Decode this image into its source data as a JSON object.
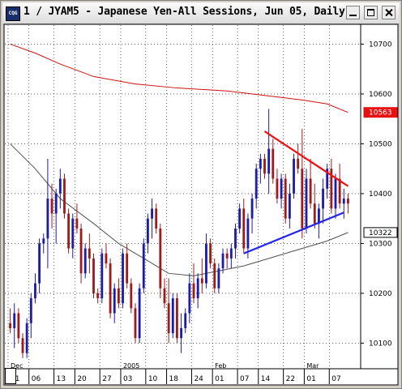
{
  "window": {
    "title": "1 / JYAM5 - Japanese Yen-All Sessions, Jun 05, Daily"
  },
  "colors": {
    "up": "#1c1ca8",
    "down": "#9c1c1c",
    "ma_long": "#d01010",
    "ma_short": "#505050",
    "resistance": "#ee1111",
    "support": "#2222ee"
  },
  "chart_data": {
    "type": "candlestick",
    "title": "1 / JYAM5 - Japanese Yen-All Sessions, Jun 05, Daily",
    "y_ticks": [
      10100,
      10200,
      10300,
      10400,
      10500,
      10600,
      10700
    ],
    "y_tick_labels": [
      "10100",
      "10200",
      "10300",
      "10400",
      "10500",
      "10600",
      "10700"
    ],
    "ylim": [
      10060,
      10730
    ],
    "x_ticks": [
      "01",
      "06",
      "13",
      "20",
      "27",
      "03",
      "10",
      "18",
      "24",
      "01",
      "07",
      "14",
      "22",
      "01",
      "07"
    ],
    "month_labels": [
      {
        "label": "Dec",
        "index": 0
      },
      {
        "label": "2005",
        "index": 5
      },
      {
        "label": "Feb",
        "index": 9
      },
      {
        "label": "Mar",
        "index": 13
      }
    ],
    "price_tags": [
      {
        "label": "10563",
        "value": 10563,
        "style": "red"
      },
      {
        "label": "10322",
        "value": 10322,
        "style": "dark"
      }
    ],
    "candles": [
      [
        10140,
        10170,
        10120,
        10130
      ],
      [
        10130,
        10180,
        10090,
        10160
      ],
      [
        10160,
        10170,
        10100,
        10110
      ],
      [
        10110,
        10120,
        10070,
        10080
      ],
      [
        10080,
        10150,
        10070,
        10140
      ],
      [
        10140,
        10200,
        10110,
        10190
      ],
      [
        10190,
        10240,
        10180,
        10220
      ],
      [
        10220,
        10310,
        10200,
        10300
      ],
      [
        10300,
        10320,
        10280,
        10310
      ],
      [
        10310,
        10470,
        10250,
        10390
      ],
      [
        10390,
        10420,
        10330,
        10360
      ],
      [
        10360,
        10410,
        10300,
        10400
      ],
      [
        10400,
        10450,
        10370,
        10430
      ],
      [
        10430,
        10440,
        10350,
        10360
      ],
      [
        10360,
        10370,
        10280,
        10290
      ],
      [
        10290,
        10360,
        10270,
        10350
      ],
      [
        10350,
        10380,
        10320,
        10330
      ],
      [
        10330,
        10340,
        10220,
        10240
      ],
      [
        10240,
        10300,
        10230,
        10290
      ],
      [
        10290,
        10320,
        10240,
        10270
      ],
      [
        10270,
        10280,
        10190,
        10200
      ],
      [
        10200,
        10210,
        10180,
        10190
      ],
      [
        10190,
        10290,
        10180,
        10280
      ],
      [
        10280,
        10300,
        10250,
        10260
      ],
      [
        10260,
        10270,
        10150,
        10160
      ],
      [
        10160,
        10220,
        10140,
        10210
      ],
      [
        10210,
        10230,
        10170,
        10180
      ],
      [
        10180,
        10290,
        10170,
        10280
      ],
      [
        10280,
        10300,
        10210,
        10220
      ],
      [
        10220,
        10230,
        10160,
        10170
      ],
      [
        10170,
        10180,
        10100,
        10110
      ],
      [
        10110,
        10220,
        10100,
        10210
      ],
      [
        10210,
        10310,
        10200,
        10300
      ],
      [
        10300,
        10360,
        10280,
        10350
      ],
      [
        10350,
        10390,
        10310,
        10370
      ],
      [
        10370,
        10380,
        10320,
        10330
      ],
      [
        10330,
        10340,
        10190,
        10210
      ],
      [
        10210,
        10230,
        10170,
        10180
      ],
      [
        10180,
        10230,
        10100,
        10120
      ],
      [
        10120,
        10200,
        10110,
        10190
      ],
      [
        10190,
        10200,
        10100,
        10110
      ],
      [
        10110,
        10160,
        10080,
        10130
      ],
      [
        10130,
        10170,
        10120,
        10160
      ],
      [
        10160,
        10240,
        10140,
        10220
      ],
      [
        10220,
        10260,
        10180,
        10190
      ],
      [
        10190,
        10240,
        10170,
        10230
      ],
      [
        10230,
        10270,
        10200,
        10220
      ],
      [
        10220,
        10320,
        10210,
        10300
      ],
      [
        10300,
        10310,
        10250,
        10260
      ],
      [
        10260,
        10270,
        10200,
        10210
      ],
      [
        10210,
        10260,
        10200,
        10250
      ],
      [
        10250,
        10290,
        10240,
        10280
      ],
      [
        10280,
        10290,
        10250,
        10270
      ],
      [
        10270,
        10300,
        10250,
        10290
      ],
      [
        10290,
        10340,
        10270,
        10330
      ],
      [
        10330,
        10380,
        10320,
        10370
      ],
      [
        10370,
        10390,
        10280,
        10290
      ],
      [
        10290,
        10360,
        10270,
        10350
      ],
      [
        10350,
        10400,
        10320,
        10390
      ],
      [
        10390,
        10460,
        10370,
        10450
      ],
      [
        10450,
        10480,
        10420,
        10470
      ],
      [
        10470,
        10480,
        10430,
        10440
      ],
      [
        10440,
        10570,
        10400,
        10490
      ],
      [
        10490,
        10510,
        10420,
        10430
      ],
      [
        10430,
        10450,
        10380,
        10390
      ],
      [
        10390,
        10440,
        10370,
        10430
      ],
      [
        10430,
        10440,
        10340,
        10350
      ],
      [
        10350,
        10420,
        10330,
        10400
      ],
      [
        10400,
        10480,
        10390,
        10470
      ],
      [
        10470,
        10500,
        10440,
        10450
      ],
      [
        10450,
        10530,
        10310,
        10330
      ],
      [
        10330,
        10450,
        10320,
        10430
      ],
      [
        10430,
        10470,
        10370,
        10380
      ],
      [
        10380,
        10420,
        10330,
        10340
      ],
      [
        10340,
        10380,
        10310,
        10370
      ],
      [
        10370,
        10430,
        10340,
        10410
      ],
      [
        10410,
        10460,
        10390,
        10450
      ],
      [
        10450,
        10470,
        10360,
        10370
      ],
      [
        10370,
        10440,
        10350,
        10430
      ],
      [
        10430,
        10460,
        10370,
        10380
      ],
      [
        10380,
        10410,
        10350,
        10390
      ],
      [
        10390,
        10400,
        10360,
        10380
      ]
    ],
    "indicators": [
      {
        "name": "",
        "type": "moving-average",
        "color": "#d01010",
        "points": [
          [
            0,
            10700
          ],
          [
            6,
            10682
          ],
          [
            12,
            10660
          ],
          [
            20,
            10635
          ],
          [
            30,
            10620
          ],
          [
            40,
            10612
          ],
          [
            52,
            10606
          ],
          [
            60,
            10598
          ],
          [
            70,
            10588
          ],
          [
            76,
            10580
          ],
          [
            81,
            10563
          ]
        ]
      },
      {
        "name": "",
        "type": "moving-average",
        "color": "#505050",
        "points": [
          [
            0,
            10500
          ],
          [
            6,
            10450
          ],
          [
            12,
            10390
          ],
          [
            20,
            10340
          ],
          [
            26,
            10300
          ],
          [
            32,
            10270
          ],
          [
            38,
            10240
          ],
          [
            44,
            10235
          ],
          [
            50,
            10245
          ],
          [
            56,
            10255
          ],
          [
            62,
            10270
          ],
          [
            68,
            10285
          ],
          [
            72,
            10295
          ],
          [
            76,
            10305
          ],
          [
            81,
            10322
          ]
        ]
      }
    ],
    "trendlines": [
      {
        "name": "",
        "color": "#ee1111",
        "from": [
          61,
          10525
        ],
        "to": [
          81,
          10415
        ]
      },
      {
        "name": "",
        "color": "#2222ee",
        "from": [
          56,
          10280
        ],
        "to": [
          80,
          10362
        ]
      }
    ],
    "grid": true
  }
}
